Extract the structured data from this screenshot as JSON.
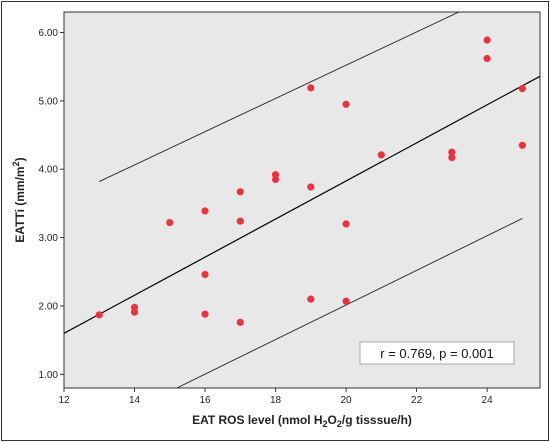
{
  "chart_data": {
    "type": "scatter",
    "xlabel": {
      "prefix": "EAT ROS level (nmol H",
      "sub1": "2",
      "mid": "O",
      "sub2": "2",
      "suffix": "/g tisssue/h)"
    },
    "ylabel": {
      "text": "EATTi (mm/m",
      "sup": "2",
      "close": ")"
    },
    "xlim": [
      12,
      25.5
    ],
    "ylim": [
      0.8,
      6.3
    ],
    "x_ticks": [
      12,
      14,
      16,
      18,
      20,
      22,
      24
    ],
    "y_ticks": [
      1.0,
      2.0,
      3.0,
      4.0,
      5.0,
      6.0
    ],
    "x_tick_labels": [
      "12",
      "14",
      "16",
      "18",
      "20",
      "22",
      "24"
    ],
    "y_tick_labels": [
      "1.00",
      "2.00",
      "3.00",
      "4.00",
      "5.00",
      "6.00"
    ],
    "points": [
      {
        "x": 13,
        "y": 1.87
      },
      {
        "x": 14,
        "y": 1.91
      },
      {
        "x": 14,
        "y": 1.98
      },
      {
        "x": 15,
        "y": 3.22
      },
      {
        "x": 16,
        "y": 1.88
      },
      {
        "x": 16,
        "y": 2.46
      },
      {
        "x": 16,
        "y": 3.39
      },
      {
        "x": 17,
        "y": 1.76
      },
      {
        "x": 17,
        "y": 3.24
      },
      {
        "x": 17,
        "y": 3.67
      },
      {
        "x": 18,
        "y": 3.85
      },
      {
        "x": 18,
        "y": 3.92
      },
      {
        "x": 19,
        "y": 2.1
      },
      {
        "x": 19,
        "y": 3.74
      },
      {
        "x": 19,
        "y": 5.19
      },
      {
        "x": 20,
        "y": 2.07
      },
      {
        "x": 20,
        "y": 3.2
      },
      {
        "x": 20,
        "y": 4.95
      },
      {
        "x": 21,
        "y": 4.21
      },
      {
        "x": 23,
        "y": 4.17
      },
      {
        "x": 23,
        "y": 4.25
      },
      {
        "x": 24,
        "y": 5.62
      },
      {
        "x": 24,
        "y": 5.89
      },
      {
        "x": 25,
        "y": 4.35
      },
      {
        "x": 25,
        "y": 5.18
      }
    ],
    "fit_line": {
      "x": [
        12,
        25.5
      ],
      "y": [
        1.6,
        5.36
      ]
    },
    "upper_bound": {
      "x": [
        13,
        23.2
      ],
      "y": [
        3.82,
        6.3
      ]
    },
    "lower_bound": {
      "x": [
        15.2,
        25
      ],
      "y": [
        0.8,
        3.28
      ]
    },
    "annotation": "r = 0.769, p = 0.001",
    "grid": false,
    "colors": {
      "point": "#e8343c",
      "plot_bg": "#e8e8e8",
      "line": "#000000"
    }
  }
}
